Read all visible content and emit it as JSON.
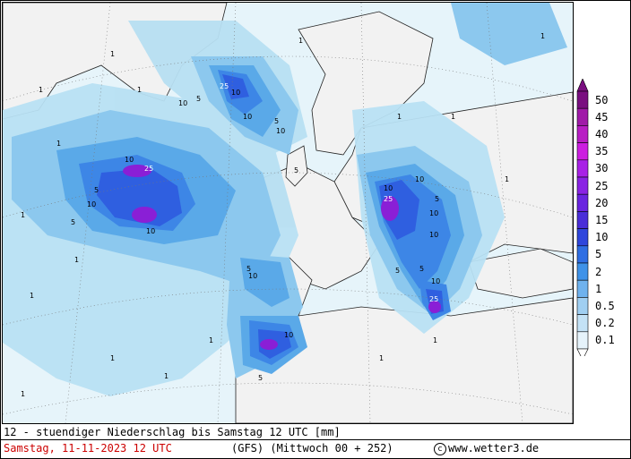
{
  "map": {
    "contour_labels": [
      "1",
      "5",
      "10",
      "25"
    ],
    "colors": {
      "land": "#f2f2f2",
      "ocean_light": "#e6f4fa",
      "lvl_0_1": "#d8eff8",
      "lvl_0_5": "#b8e0f3",
      "lvl_1": "#8cc8ee",
      "lvl_2": "#5aa9e8",
      "lvl_5": "#3d86e6",
      "lvl_10": "#2f5fe0",
      "lvl_15": "#4a2fd8",
      "lvl_25": "#8a1fd6",
      "lvl_50": "#7a0f80"
    }
  },
  "legend": {
    "levels": [
      {
        "label": "50",
        "color": "#7a0f80"
      },
      {
        "label": "45",
        "color": "#a01aa8"
      },
      {
        "label": "40",
        "color": "#b81ec4"
      },
      {
        "label": "35",
        "color": "#cc1fe0"
      },
      {
        "label": "30",
        "color": "#a821e6"
      },
      {
        "label": "25",
        "color": "#8a23e4"
      },
      {
        "label": "20",
        "color": "#6a24e0"
      },
      {
        "label": "15",
        "color": "#4a2ed8"
      },
      {
        "label": "10",
        "color": "#2f46dc"
      },
      {
        "label": "5",
        "color": "#2f6ee3"
      },
      {
        "label": "2",
        "color": "#3f92e8"
      },
      {
        "label": "1",
        "color": "#6fb2ee"
      },
      {
        "label": "0.5",
        "color": "#a0cff2"
      },
      {
        "label": "0.2",
        "color": "#c4e2f6"
      },
      {
        "label": "0.1",
        "color": "#e6f3fb"
      }
    ]
  },
  "caption": {
    "line1": "12 - stuendiger Niederschlag bis Samstag 12 UTC [mm]",
    "date": "Samstag, 11-11-2023  12 UTC",
    "model": "(GFS)  (Mittwoch 00 + 252)",
    "copyright_symbol": "c",
    "copyright_text": "www.wetter3.de"
  }
}
